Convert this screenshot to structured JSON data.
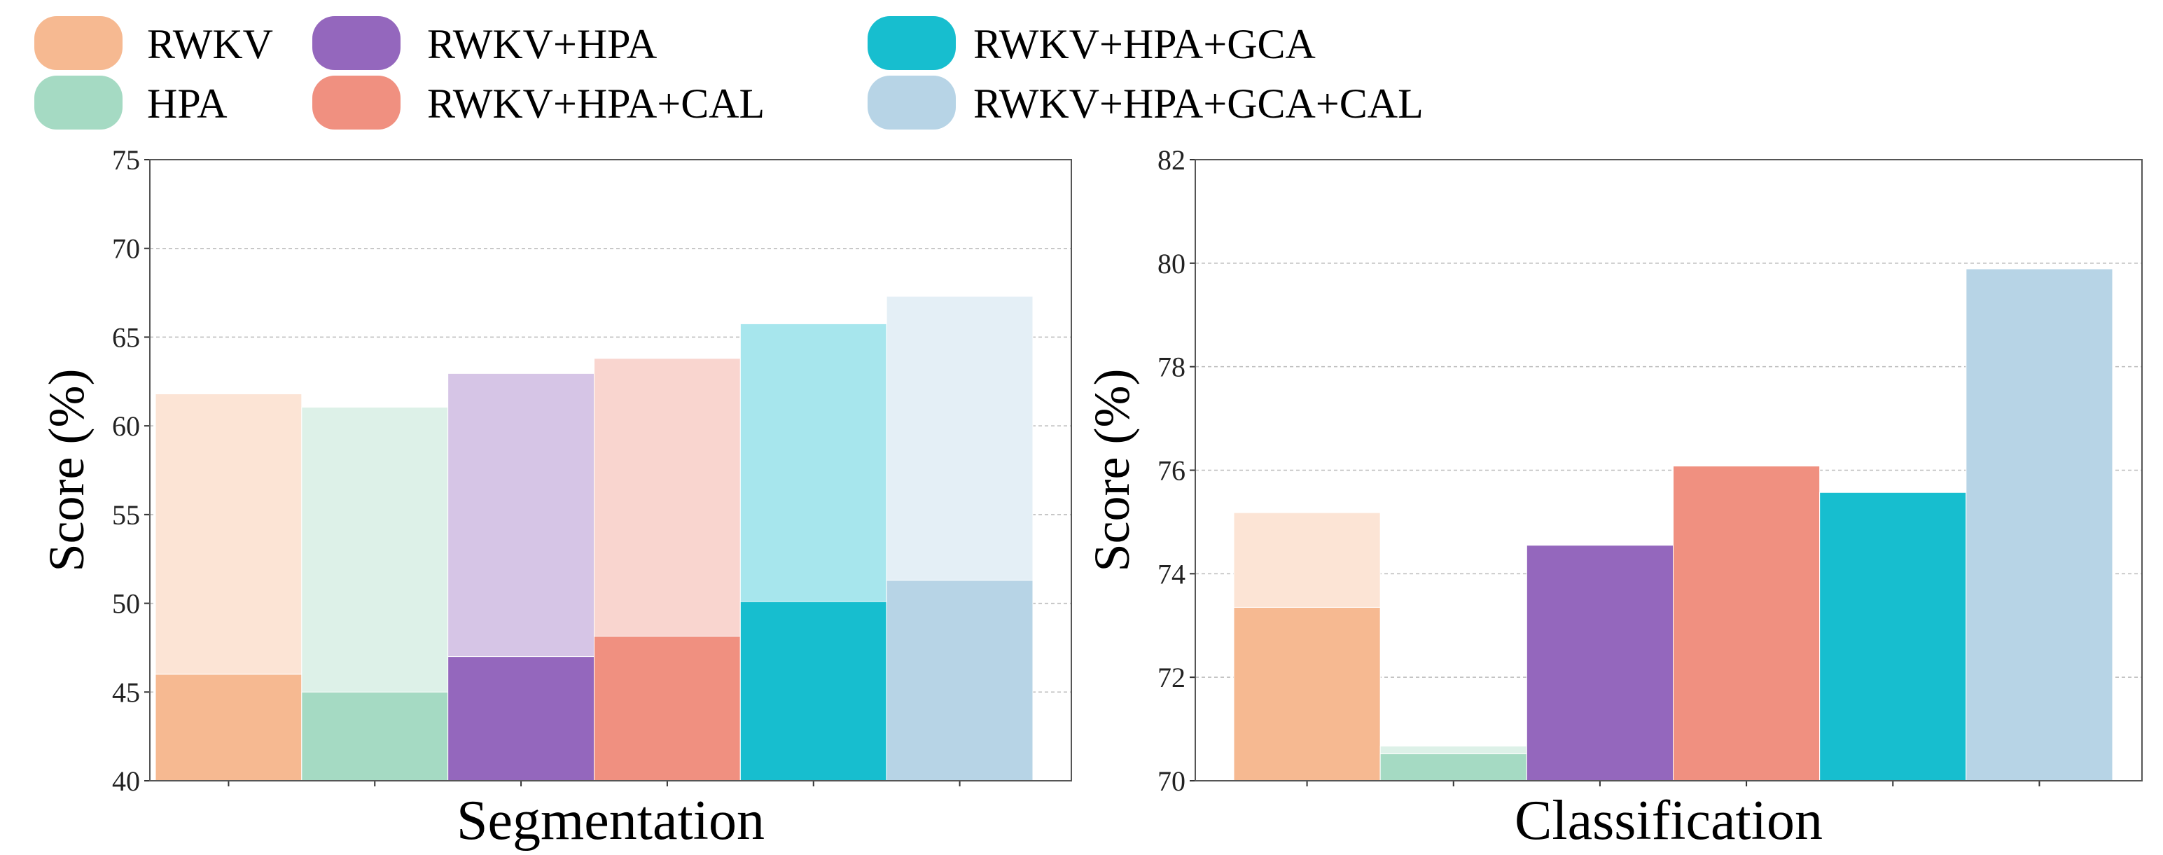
{
  "legend": [
    {
      "label": "RWKV",
      "color": "#f6b991"
    },
    {
      "label": "HPA",
      "color": "#a5dac3"
    },
    {
      "label": "RWKV+HPA",
      "color": "#9467bd"
    },
    {
      "label": "RWKV+HPA+CAL",
      "color": "#f09080"
    },
    {
      "label": "RWKV+HPA+GCA",
      "color": "#17becf"
    },
    {
      "label": "RWKV+HPA+GCA+CAL",
      "color": "#b7d4e6"
    }
  ],
  "chart_data": [
    {
      "type": "bar",
      "title": "",
      "xlabel": "Segmentation",
      "ylabel": "Score (%)",
      "ylim": [
        40,
        75
      ],
      "yticks": [
        "40",
        "45",
        "50",
        "55",
        "60",
        "65",
        "70",
        "75"
      ],
      "grid": true,
      "categories": [
        "RWKV",
        "HPA",
        "RWKV+HPA",
        "RWKV+HPA+CAL",
        "RWKV+HPA+GCA",
        "RWKV+HPA+GCA+CAL"
      ],
      "series": [
        {
          "name": "upper (light)",
          "values": [
            61.8,
            61.05,
            62.95,
            63.8,
            65.75,
            67.3
          ]
        },
        {
          "name": "lower (solid)",
          "values": [
            46.0,
            45.0,
            47.0,
            48.15,
            50.1,
            51.3
          ]
        }
      ]
    },
    {
      "type": "bar",
      "title": "",
      "xlabel": "Classification",
      "ylabel": "Score (%)",
      "ylim": [
        70,
        82
      ],
      "yticks": [
        "70",
        "72",
        "74",
        "76",
        "78",
        "80",
        "82"
      ],
      "grid": true,
      "categories": [
        "RWKV",
        "HPA",
        "RWKV+HPA",
        "RWKV+HPA+CAL",
        "RWKV+HPA+GCA",
        "RWKV+HPA+GCA+CAL"
      ],
      "series": [
        {
          "name": "upper (light)",
          "values": [
            75.18,
            70.67,
            74.55,
            76.08,
            75.57,
            79.89
          ]
        },
        {
          "name": "lower (solid)",
          "values": [
            73.35,
            70.52,
            74.55,
            76.08,
            75.57,
            79.89
          ]
        }
      ]
    }
  ]
}
